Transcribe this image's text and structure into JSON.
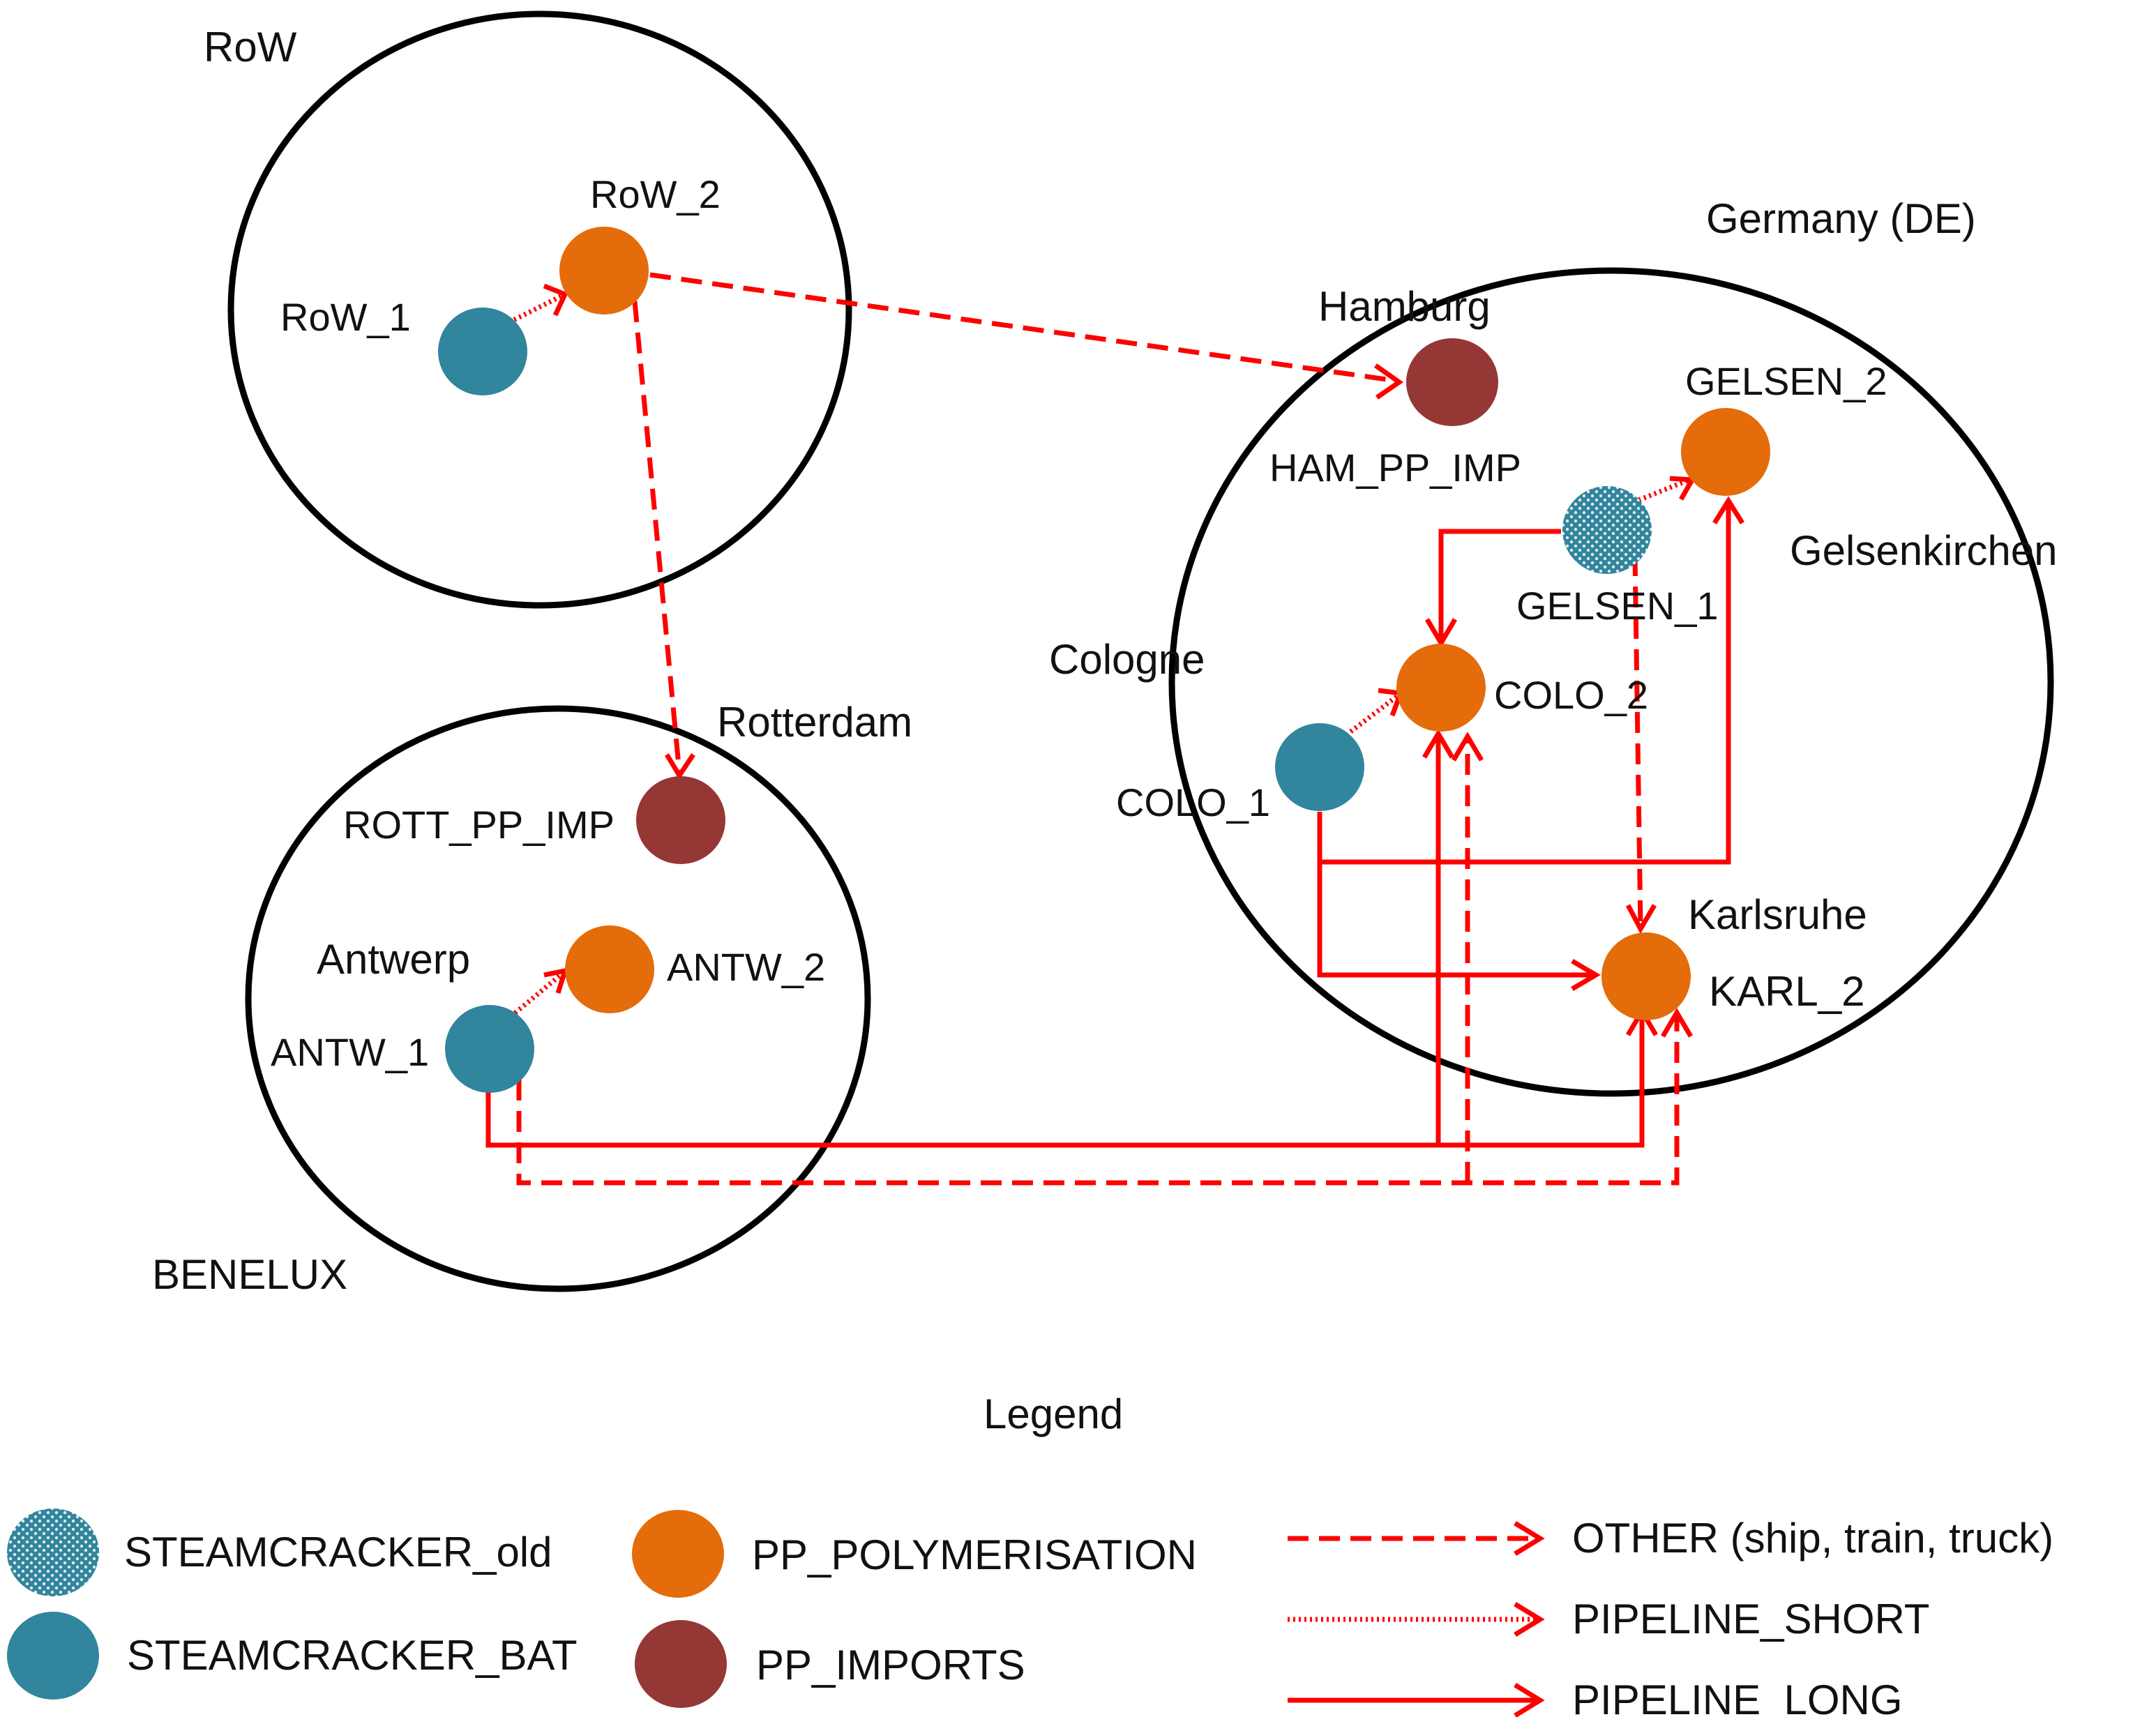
{
  "regions": {
    "row": "RoW",
    "germany": "Germany (DE)",
    "benelux": "BENELUX"
  },
  "sites": {
    "hamburg": "Hamburg",
    "gelsenkirchen": "Gelsenkirchen",
    "cologne": "Cologne",
    "karlsruhe": "Karlsruhe",
    "rotterdam": "Rotterdam",
    "antwerp": "Antwerp"
  },
  "nodes": {
    "row_1": "RoW_1",
    "row_2": "RoW_2",
    "ham_pp_imp": "HAM_PP_IMP",
    "gelsen_1": "GELSEN_1",
    "gelsen_2": "GELSEN_2",
    "colo_1": "COLO_1",
    "colo_2": "COLO_2",
    "karl_2": "KARL_2",
    "rott_pp_imp": "ROTT_PP_IMP",
    "antw_1": "ANTW_1",
    "antw_2": "ANTW_2"
  },
  "legend": {
    "title": "Legend",
    "steamcracker_old": "STEAMCRACKER_old",
    "steamcracker_bat": "STEAMCRACKER_BAT",
    "pp_polymerisation": "PP_POLYMERISATION",
    "pp_imports": "PP_IMPORTS",
    "other": "OTHER (ship, train, truck)",
    "pipeline_short": "PIPELINE_SHORT",
    "pipeline_long": "PIPELINE_LONG"
  },
  "colors": {
    "steamcracker": "#31859c",
    "polymerisation": "#e46c0a",
    "imports": "#953735",
    "arrow": "#ff0000",
    "region_outline": "#000000"
  }
}
